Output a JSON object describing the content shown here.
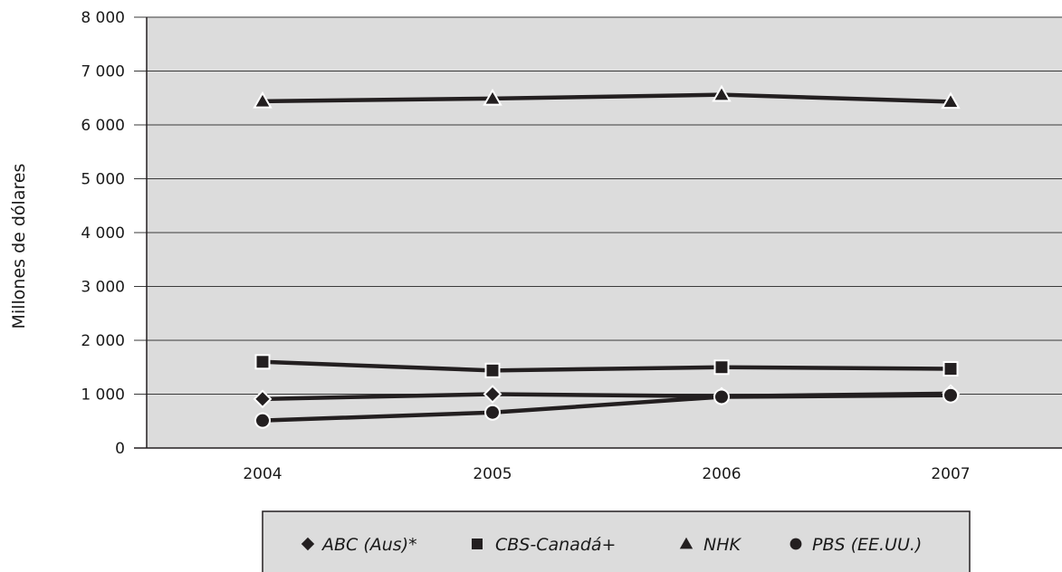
{
  "chart_data": {
    "type": "line",
    "ylabel": "Millones de dólares",
    "xlabel": "",
    "title": "",
    "categories": [
      "2004",
      "2005",
      "2006",
      "2007"
    ],
    "ylim": [
      0,
      8000
    ],
    "yticks": [
      0,
      1000,
      2000,
      3000,
      4000,
      5000,
      6000,
      7000,
      8000
    ],
    "ytick_labels": [
      "0",
      "1 000",
      "2 000",
      "3 000",
      "4 000",
      "5 000",
      "6 000",
      "7 000",
      "8 000"
    ],
    "grid": true,
    "legend_position": "bottom",
    "series": [
      {
        "name": "ABC (Aus)*",
        "marker": "diamond",
        "values": [
          910,
          1000,
          960,
          1010
        ]
      },
      {
        "name": "CBS-Canadá+",
        "marker": "square",
        "values": [
          1600,
          1440,
          1500,
          1470
        ]
      },
      {
        "name": "NHK",
        "marker": "triangle",
        "values": [
          6440,
          6490,
          6560,
          6430
        ]
      },
      {
        "name": "PBS (EE.UU.)",
        "marker": "circle",
        "values": [
          510,
          660,
          950,
          980
        ]
      }
    ],
    "colors": {
      "plot_background": "#dcdcdc",
      "line": "#231f20",
      "legend_background": "#dcdcdc"
    }
  }
}
